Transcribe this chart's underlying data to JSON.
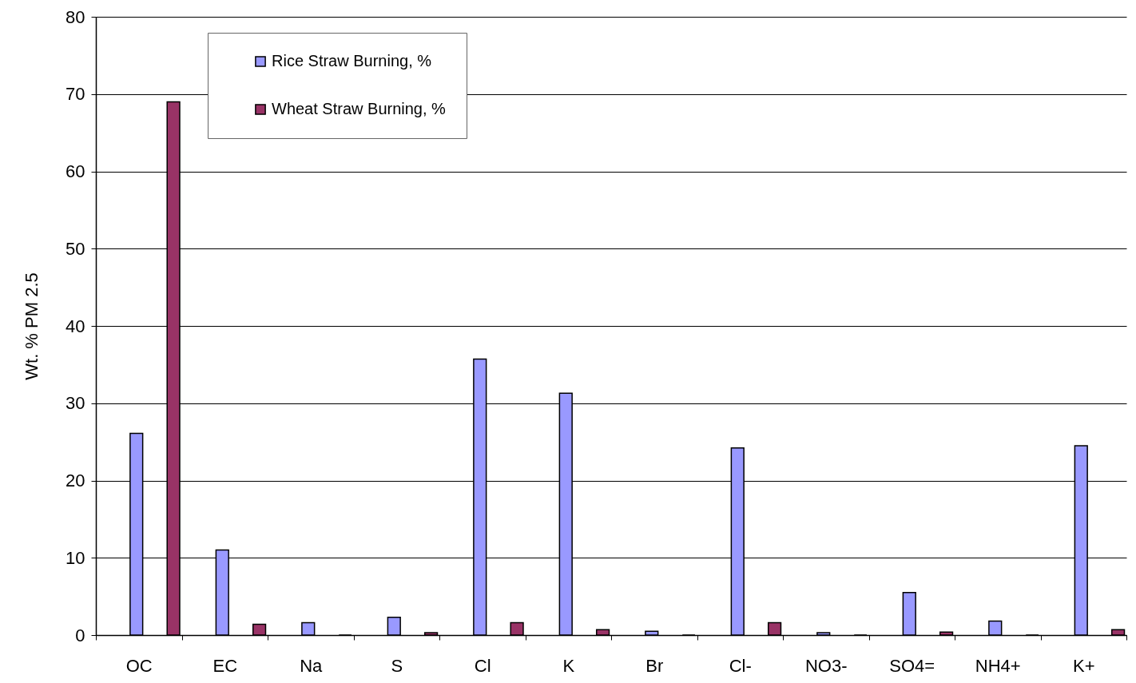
{
  "chart_data": {
    "type": "bar",
    "ylabel": "Wt. % PM 2.5",
    "categories": [
      "OC",
      "EC",
      "Na",
      "S",
      "Cl",
      "K",
      "Br",
      "Cl-",
      "NO3-",
      "SO4=",
      "NH4+",
      "K+"
    ],
    "series": [
      {
        "name": "Rice Straw Burning, %",
        "color": "#9999ff",
        "values": [
          26.1,
          11,
          1.6,
          2.3,
          35.7,
          31.3,
          0.5,
          24.2,
          0.3,
          5.5,
          1.8,
          24.5
        ]
      },
      {
        "name": "Wheat Straw Burning, %",
        "color": "#993366",
        "values": [
          69,
          1.4,
          0,
          0.3,
          1.6,
          0.7,
          0,
          1.6,
          0,
          0.4,
          0,
          0.7
        ]
      }
    ],
    "ylim": [
      0,
      80
    ],
    "yticks": [
      0,
      10,
      20,
      30,
      40,
      50,
      60,
      70,
      80
    ],
    "grid": "y",
    "legend": "top left"
  }
}
